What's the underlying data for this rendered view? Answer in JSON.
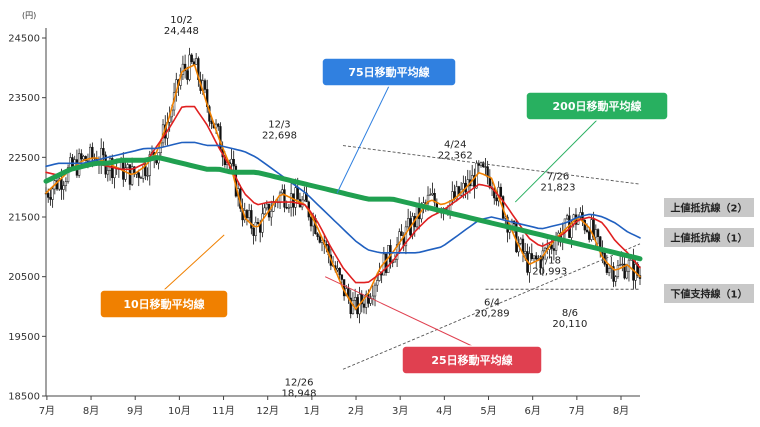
{
  "chart_data": {
    "type": "line",
    "unit_label": "(円)",
    "ylim": [
      18500,
      24500
    ],
    "y_ticks": [
      18500,
      19500,
      20500,
      21500,
      22500,
      23500,
      24500
    ],
    "x_ticks": [
      "7月",
      "8月",
      "9月",
      "10月",
      "11月",
      "12月",
      "1月",
      "2月",
      "3月",
      "4月",
      "5月",
      "6月",
      "7月",
      "8月"
    ],
    "grid": false,
    "series": [
      {
        "name": "10日移動平均線",
        "color": "#f08000",
        "values": [
          21900,
          22100,
          22300,
          22450,
          22500,
          22400,
          22300,
          22200,
          22350,
          22600,
          23200,
          23950,
          24050,
          23400,
          22800,
          22300,
          21500,
          21300,
          21600,
          21900,
          21800,
          21700,
          21300,
          20800,
          20300,
          19950,
          20200,
          20650,
          20900,
          21200,
          21500,
          21800,
          21700,
          21800,
          22000,
          22250,
          22150,
          21600,
          21100,
          20700,
          20800,
          21100,
          21300,
          21500,
          21300,
          20800,
          20600,
          20700,
          20500
        ]
      },
      {
        "name": "25日移動平均線",
        "color": "#e02020",
        "values": [
          22250,
          22200,
          22300,
          22350,
          22400,
          22350,
          22300,
          22300,
          22400,
          22700,
          23000,
          23350,
          23350,
          23050,
          22650,
          22300,
          21900,
          21700,
          21750,
          21750,
          21750,
          21700,
          21400,
          21000,
          20650,
          20400,
          20400,
          20550,
          20750,
          21050,
          21300,
          21500,
          21600,
          21750,
          21900,
          22050,
          22000,
          21750,
          21450,
          21150,
          21000,
          21100,
          21250,
          21450,
          21500,
          21400,
          21100,
          20900,
          20650
        ]
      },
      {
        "name": "75日移動平均線",
        "color": "#2060c0",
        "values": [
          22350,
          22400,
          22400,
          22400,
          22450,
          22500,
          22550,
          22600,
          22650,
          22650,
          22700,
          22750,
          22750,
          22700,
          22700,
          22650,
          22600,
          22500,
          22350,
          22200,
          22050,
          21900,
          21700,
          21500,
          21300,
          21100,
          20950,
          20900,
          20900,
          20900,
          20900,
          20950,
          21000,
          21150,
          21300,
          21450,
          21500,
          21450,
          21400,
          21350,
          21300,
          21350,
          21400,
          21500,
          21550,
          21500,
          21400,
          21250,
          21150
        ]
      },
      {
        "name": "200日移動平均線",
        "color": "#20a050",
        "values": [
          22100,
          22200,
          22300,
          22350,
          22400,
          22400,
          22450,
          22450,
          22450,
          22500,
          22450,
          22400,
          22350,
          22300,
          22300,
          22250,
          22250,
          22250,
          22200,
          22150,
          22100,
          22050,
          22000,
          21950,
          21900,
          21850,
          21800,
          21800,
          21800,
          21750,
          21700,
          21650,
          21600,
          21550,
          21500,
          21450,
          21400,
          21350,
          21300,
          21250,
          21200,
          21150,
          21100,
          21050,
          21000,
          20950,
          20900,
          20850,
          20800
        ]
      }
    ],
    "resistance_lines": [
      {
        "name": "上値抵抗線（2）",
        "from": [
          0.5,
          22698
        ],
        "to": [
          1.0,
          22050
        ]
      },
      {
        "name": "上値抵抗線（1）",
        "from": [
          0.5,
          18948
        ],
        "to": [
          1.0,
          21050
        ]
      },
      {
        "name": "下値支持線（1）",
        "from": [
          0.74,
          20289
        ],
        "to": [
          1.0,
          20289
        ]
      }
    ],
    "annotations": [
      {
        "label": "10/2",
        "value": "24,448",
        "t": 0.228,
        "y": 24448
      },
      {
        "label": "12/3",
        "value": "22,698",
        "t": 0.393,
        "y": 22698
      },
      {
        "label": "12/26",
        "value": "18,948",
        "t": 0.426,
        "y": 18948
      },
      {
        "label": "4/24",
        "value": "22,362",
        "t": 0.689,
        "y": 22362
      },
      {
        "label": "6/4",
        "value": "20,289",
        "t": 0.751,
        "y": 20289
      },
      {
        "label": "7/18",
        "value": "20,993",
        "t": 0.848,
        "y": 20993
      },
      {
        "label": "7/26",
        "value": "21,823",
        "t": 0.862,
        "y": 21823
      },
      {
        "label": "8/6",
        "value": "20,110",
        "t": 0.882,
        "y": 20110
      }
    ],
    "callouts": [
      {
        "text": "10日移動平均線",
        "color": "#f08000"
      },
      {
        "text": "25日移動平均線",
        "color": "#e04050"
      },
      {
        "text": "75日移動平均線",
        "color": "#3080e0"
      },
      {
        "text": "200日移動平均線",
        "color": "#28b060"
      }
    ]
  }
}
